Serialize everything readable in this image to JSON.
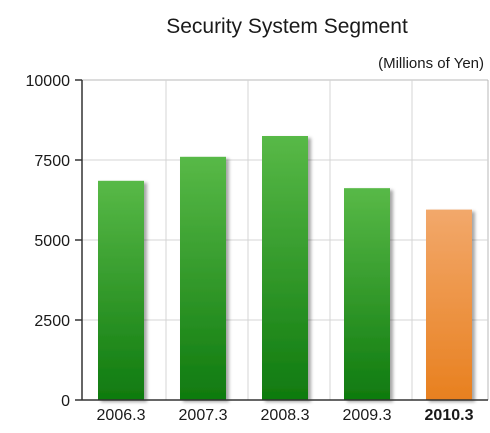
{
  "chart_data": {
    "type": "bar",
    "title": "Security System Segment",
    "unit_label": "(Millions of Yen)",
    "categories": [
      "2006.3",
      "2007.3",
      "2008.3",
      "2009.3",
      "2010.3"
    ],
    "values": [
      6850,
      7600,
      8250,
      6620,
      5950
    ],
    "highlight_index": 4,
    "ylim": [
      0,
      10000
    ],
    "yticks": [
      0,
      2500,
      5000,
      7500,
      10000
    ],
    "grid": true,
    "legend": "none"
  },
  "colors": {
    "bar_green_light": "#58b947",
    "bar_green_dark": "#0f7a0f",
    "bar_orange_light": "#f2a86b",
    "bar_orange_dark": "#e8801f",
    "highlight_label": "#f08a1c",
    "axis": "#333333",
    "grid": "#d4d4d4",
    "plot_border": "#b8b8b8"
  }
}
